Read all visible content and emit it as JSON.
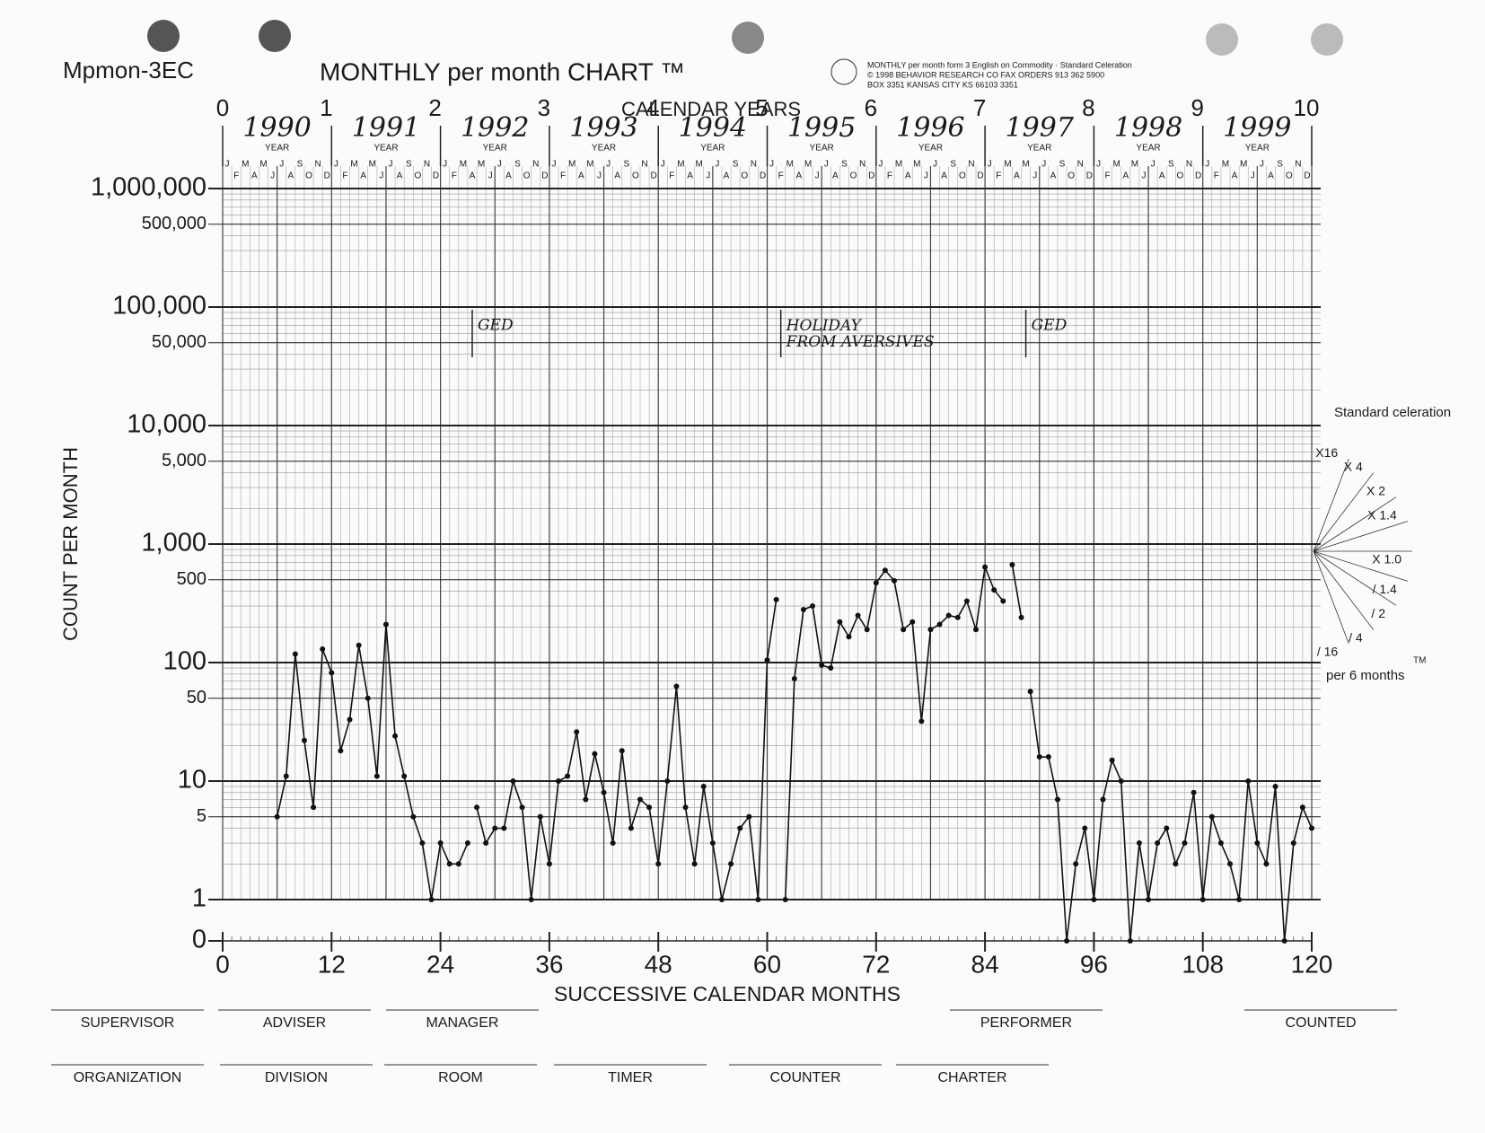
{
  "header": {
    "form_code": "Mpmon-3EC",
    "title": "MONTHLY per month CHART ™",
    "publisher": [
      "MONTHLY per month form 3 English on Commodity · Standard Celeration",
      "© 1998 BEHAVIOR RESEARCH CO  FAX ORDERS 913 362 5900",
      "BOX 3351  KANSAS CITY KS 66103 3351"
    ]
  },
  "chart_data": {
    "type": "line",
    "log_scale": true,
    "y_label": "COUNT PER MONTH",
    "x_label": "SUCCESSIVE CALENDAR MONTHS",
    "top_axis_label": "CALENDAR YEARS",
    "xlim": [
      0,
      120
    ],
    "xticks": [
      0,
      12,
      24,
      36,
      48,
      60,
      72,
      84,
      96,
      108,
      120
    ],
    "ylim": [
      1,
      1000000
    ],
    "yticks": [
      {
        "value": 1000000,
        "label": "1,000,000"
      },
      {
        "value": 500000,
        "label": "500,000"
      },
      {
        "value": 100000,
        "label": "100,000"
      },
      {
        "value": 50000,
        "label": "50,000"
      },
      {
        "value": 10000,
        "label": "10,000"
      },
      {
        "value": 5000,
        "label": "5,000"
      },
      {
        "value": 1000,
        "label": "1,000"
      },
      500,
      100,
      50,
      10,
      5,
      1,
      0
    ],
    "calendar_year_ticks": [
      0,
      1,
      2,
      3,
      4,
      5,
      6,
      7,
      8,
      9,
      10
    ],
    "years": [
      "1990",
      "1991",
      "1992",
      "1993",
      "1994",
      "1995",
      "1996",
      "1997",
      "1998",
      "1999"
    ],
    "year_caption": "YEAR",
    "month_letters": [
      "J",
      "F",
      "M",
      "A",
      "M",
      "J",
      "J",
      "A",
      "S",
      "O",
      "N",
      "D"
    ],
    "series": [
      {
        "color": "#111",
        "x": [
          6,
          7,
          8,
          9,
          10,
          11,
          12,
          13,
          14,
          15,
          16,
          17,
          18,
          19,
          20,
          21,
          22,
          23,
          24,
          25,
          26,
          27
        ],
        "values": [
          5,
          11,
          118,
          22,
          6,
          130,
          82,
          18,
          33,
          140,
          50,
          11,
          210,
          24,
          11,
          5,
          3,
          1,
          3,
          2,
          2,
          3
        ]
      },
      {
        "color": "#111",
        "x": [
          28,
          29,
          30,
          31,
          32,
          33,
          34,
          35,
          36,
          37,
          38,
          39,
          40,
          41,
          42,
          43,
          44,
          45,
          46,
          47,
          48,
          49,
          50,
          51,
          52,
          53,
          54,
          55,
          56,
          57,
          58,
          59,
          60,
          61
        ],
        "values": [
          6,
          3,
          4,
          4,
          10,
          6,
          1,
          5,
          2,
          10,
          11,
          26,
          7,
          17,
          8,
          3,
          18,
          4,
          7,
          6,
          2,
          10,
          63,
          6,
          2,
          9,
          3,
          1,
          2,
          4,
          5,
          1,
          105,
          340
        ]
      },
      {
        "color": "#111",
        "x": [
          62,
          63,
          64,
          65,
          66,
          67,
          68,
          69,
          70,
          71,
          72,
          73,
          74,
          75,
          76,
          77,
          78,
          79,
          80,
          81,
          82,
          83,
          84,
          85,
          86
        ],
        "values": [
          1,
          73,
          280,
          300,
          95,
          90,
          220,
          165,
          250,
          190,
          470,
          600,
          490,
          190,
          220,
          32,
          190,
          210,
          250,
          240,
          330,
          190,
          640,
          410,
          330
        ]
      },
      {
        "color": "#111",
        "x": [
          87,
          88
        ],
        "values": [
          670,
          240
        ]
      },
      {
        "color": "#111",
        "x": [
          89,
          90,
          91,
          92,
          93,
          94,
          95,
          96,
          97,
          98,
          99,
          100,
          101,
          102,
          103,
          104,
          105,
          106,
          107,
          108,
          109,
          110,
          111,
          112,
          113,
          114,
          115,
          116,
          117,
          118,
          119,
          120
        ],
        "values": [
          57,
          16,
          16,
          7,
          0,
          2,
          4,
          1,
          7,
          15,
          10,
          0,
          3,
          1,
          3,
          4,
          2,
          3,
          8,
          1,
          5,
          3,
          2,
          1,
          10,
          3,
          2,
          9,
          0,
          3,
          6,
          4
        ]
      }
    ],
    "annotations": [
      {
        "text": "GED",
        "x": 27.5
      },
      {
        "text": "HOLIDAY FROM AVERSIVES",
        "x": 61.5
      },
      {
        "text": "GED",
        "x": 88.5
      }
    ],
    "celeration": {
      "title": "Standard celeration",
      "per": "per 6 months",
      "tm": "TM",
      "lines": [
        {
          "value": 16,
          "label": "X16"
        },
        {
          "value": 4,
          "label": "X 4"
        },
        {
          "value": 2,
          "label": "X 2"
        },
        {
          "value": 1.4,
          "label": "X 1.4"
        },
        {
          "value": 1,
          "label": "X 1.0"
        },
        {
          "value": 0.714,
          "label": "/ 1.4"
        },
        {
          "value": 0.5,
          "label": "/ 2"
        },
        {
          "value": 0.25,
          "label": "/ 4"
        },
        {
          "value": 0.0625,
          "label": "/ 16"
        }
      ]
    }
  },
  "footer": {
    "row1": [
      "SUPERVISOR",
      "ADVISER",
      "MANAGER",
      "PERFORMER",
      "COUNTED"
    ],
    "row2": [
      "ORGANIZATION",
      "DIVISION",
      "ROOM",
      "TIMER",
      "COUNTER",
      "CHARTER"
    ]
  }
}
